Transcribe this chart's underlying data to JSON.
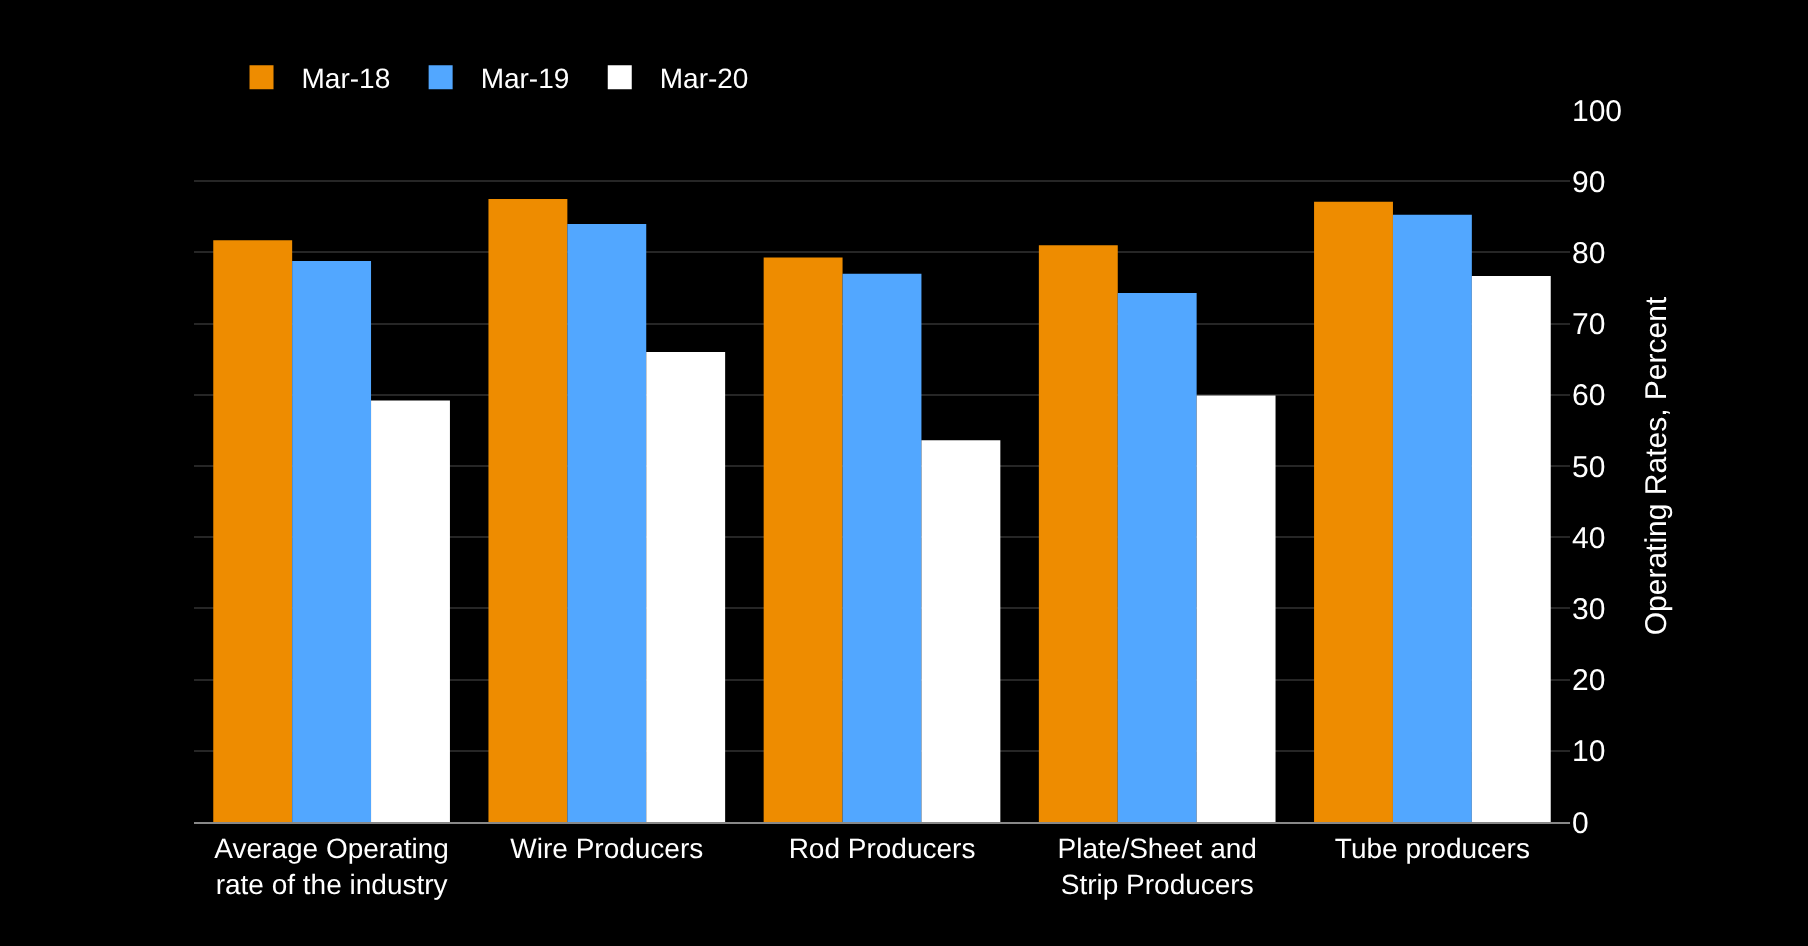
{
  "chart_data": {
    "type": "bar",
    "y2label": "Operating Rates, Percent",
    "categories": [
      "Average Operating\nrate of the industry",
      "Wire Producers",
      "Rod Producers",
      "Plate/Sheet and\nStrip Producers",
      "Tube producers"
    ],
    "series": [
      {
        "name": "Mar-18",
        "color": "#ee8c00",
        "values": [
          81.7,
          87.5,
          79.3,
          81.0,
          87.1
        ]
      },
      {
        "name": "Mar-19",
        "color": "#52a7ff",
        "values": [
          78.8,
          84.0,
          77.0,
          74.3,
          85.3
        ]
      },
      {
        "name": "Mar-20",
        "color": "#ffffff",
        "values": [
          59.2,
          66.0,
          53.6,
          59.9,
          76.7
        ]
      }
    ],
    "ylim": [
      0,
      100
    ],
    "yticks": [
      0,
      10,
      20,
      30,
      40,
      50,
      60,
      70,
      80,
      90,
      100
    ],
    "grid": "y",
    "legend": "top left"
  }
}
